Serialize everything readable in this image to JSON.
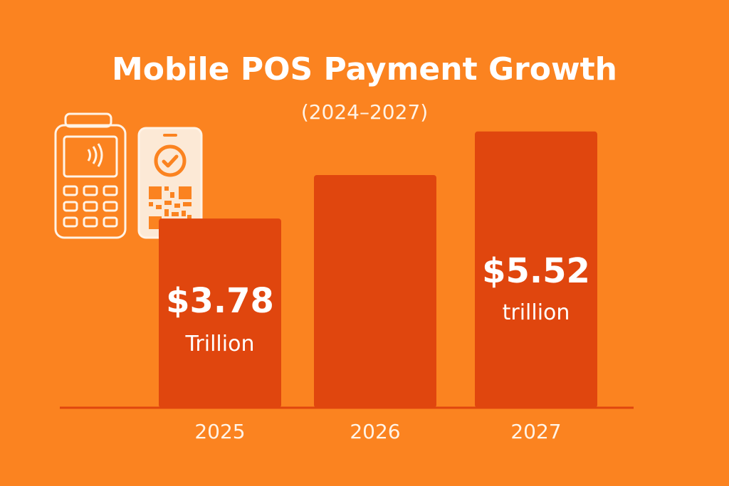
{
  "chart_data": {
    "type": "bar",
    "title": "Mobile POS Payment Growth",
    "subtitle": "(2024–2027)",
    "categories": [
      "2025",
      "2026",
      "2027"
    ],
    "values": [
      3.78,
      4.65,
      5.52
    ],
    "value_labels": [
      {
        "value": "$3.78",
        "unit": "Trillion"
      },
      {
        "value": "",
        "unit": ""
      },
      {
        "value": "$5.52",
        "unit": "trillion"
      }
    ],
    "ylim": [
      0,
      6.0
    ],
    "grid": false,
    "legend": "none"
  },
  "colors": {
    "background": "#FB8320",
    "bar": "#E0460E",
    "axis": "#E0460E",
    "text": "#FFFFFF",
    "icon_stroke": "#FFF3E6",
    "icon_fill": "#FCE9D6"
  },
  "icons": [
    "card-terminal-icon",
    "qr-phone-icon"
  ]
}
